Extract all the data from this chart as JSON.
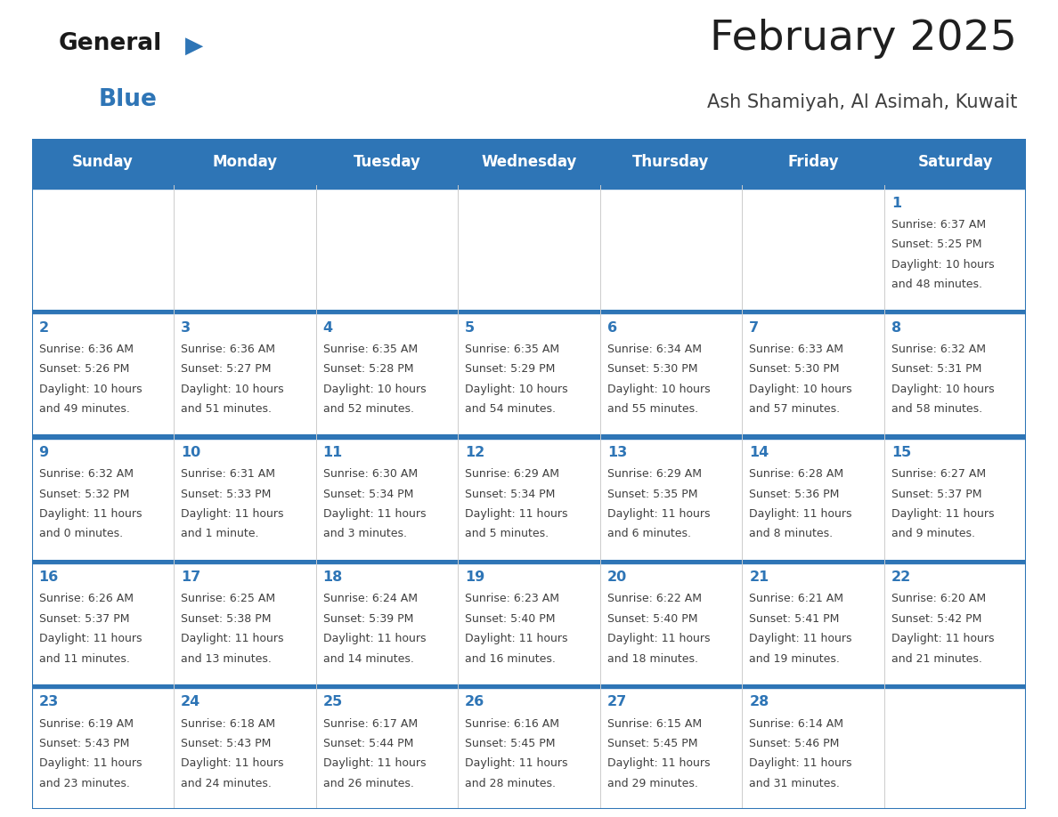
{
  "title": "February 2025",
  "subtitle": "Ash Shamiyah, Al Asimah, Kuwait",
  "header_bg_color": "#2E75B6",
  "header_text_color": "#FFFFFF",
  "border_color": "#2E75B6",
  "cell_bg_color": "#F2F2F2",
  "title_color": "#1F1F1F",
  "subtitle_color": "#404040",
  "day_num_color": "#2E75B6",
  "info_color": "#404040",
  "days_of_week": [
    "Sunday",
    "Monday",
    "Tuesday",
    "Wednesday",
    "Thursday",
    "Friday",
    "Saturday"
  ],
  "calendar_data": [
    [
      null,
      null,
      null,
      null,
      null,
      null,
      {
        "day": "1",
        "sunrise": "6:37 AM",
        "sunset": "5:25 PM",
        "daylight": "10 hours",
        "daylight2": "and 48 minutes."
      }
    ],
    [
      {
        "day": "2",
        "sunrise": "6:36 AM",
        "sunset": "5:26 PM",
        "daylight": "10 hours",
        "daylight2": "and 49 minutes."
      },
      {
        "day": "3",
        "sunrise": "6:36 AM",
        "sunset": "5:27 PM",
        "daylight": "10 hours",
        "daylight2": "and 51 minutes."
      },
      {
        "day": "4",
        "sunrise": "6:35 AM",
        "sunset": "5:28 PM",
        "daylight": "10 hours",
        "daylight2": "and 52 minutes."
      },
      {
        "day": "5",
        "sunrise": "6:35 AM",
        "sunset": "5:29 PM",
        "daylight": "10 hours",
        "daylight2": "and 54 minutes."
      },
      {
        "day": "6",
        "sunrise": "6:34 AM",
        "sunset": "5:30 PM",
        "daylight": "10 hours",
        "daylight2": "and 55 minutes."
      },
      {
        "day": "7",
        "sunrise": "6:33 AM",
        "sunset": "5:30 PM",
        "daylight": "10 hours",
        "daylight2": "and 57 minutes."
      },
      {
        "day": "8",
        "sunrise": "6:32 AM",
        "sunset": "5:31 PM",
        "daylight": "10 hours",
        "daylight2": "and 58 minutes."
      }
    ],
    [
      {
        "day": "9",
        "sunrise": "6:32 AM",
        "sunset": "5:32 PM",
        "daylight": "11 hours",
        "daylight2": "and 0 minutes."
      },
      {
        "day": "10",
        "sunrise": "6:31 AM",
        "sunset": "5:33 PM",
        "daylight": "11 hours",
        "daylight2": "and 1 minute."
      },
      {
        "day": "11",
        "sunrise": "6:30 AM",
        "sunset": "5:34 PM",
        "daylight": "11 hours",
        "daylight2": "and 3 minutes."
      },
      {
        "day": "12",
        "sunrise": "6:29 AM",
        "sunset": "5:34 PM",
        "daylight": "11 hours",
        "daylight2": "and 5 minutes."
      },
      {
        "day": "13",
        "sunrise": "6:29 AM",
        "sunset": "5:35 PM",
        "daylight": "11 hours",
        "daylight2": "and 6 minutes."
      },
      {
        "day": "14",
        "sunrise": "6:28 AM",
        "sunset": "5:36 PM",
        "daylight": "11 hours",
        "daylight2": "and 8 minutes."
      },
      {
        "day": "15",
        "sunrise": "6:27 AM",
        "sunset": "5:37 PM",
        "daylight": "11 hours",
        "daylight2": "and 9 minutes."
      }
    ],
    [
      {
        "day": "16",
        "sunrise": "6:26 AM",
        "sunset": "5:37 PM",
        "daylight": "11 hours",
        "daylight2": "and 11 minutes."
      },
      {
        "day": "17",
        "sunrise": "6:25 AM",
        "sunset": "5:38 PM",
        "daylight": "11 hours",
        "daylight2": "and 13 minutes."
      },
      {
        "day": "18",
        "sunrise": "6:24 AM",
        "sunset": "5:39 PM",
        "daylight": "11 hours",
        "daylight2": "and 14 minutes."
      },
      {
        "day": "19",
        "sunrise": "6:23 AM",
        "sunset": "5:40 PM",
        "daylight": "11 hours",
        "daylight2": "and 16 minutes."
      },
      {
        "day": "20",
        "sunrise": "6:22 AM",
        "sunset": "5:40 PM",
        "daylight": "11 hours",
        "daylight2": "and 18 minutes."
      },
      {
        "day": "21",
        "sunrise": "6:21 AM",
        "sunset": "5:41 PM",
        "daylight": "11 hours",
        "daylight2": "and 19 minutes."
      },
      {
        "day": "22",
        "sunrise": "6:20 AM",
        "sunset": "5:42 PM",
        "daylight": "11 hours",
        "daylight2": "and 21 minutes."
      }
    ],
    [
      {
        "day": "23",
        "sunrise": "6:19 AM",
        "sunset": "5:43 PM",
        "daylight": "11 hours",
        "daylight2": "and 23 minutes."
      },
      {
        "day": "24",
        "sunrise": "6:18 AM",
        "sunset": "5:43 PM",
        "daylight": "11 hours",
        "daylight2": "and 24 minutes."
      },
      {
        "day": "25",
        "sunrise": "6:17 AM",
        "sunset": "5:44 PM",
        "daylight": "11 hours",
        "daylight2": "and 26 minutes."
      },
      {
        "day": "26",
        "sunrise": "6:16 AM",
        "sunset": "5:45 PM",
        "daylight": "11 hours",
        "daylight2": "and 28 minutes."
      },
      {
        "day": "27",
        "sunrise": "6:15 AM",
        "sunset": "5:45 PM",
        "daylight": "11 hours",
        "daylight2": "and 29 minutes."
      },
      {
        "day": "28",
        "sunrise": "6:14 AM",
        "sunset": "5:46 PM",
        "daylight": "11 hours",
        "daylight2": "and 31 minutes."
      },
      null
    ]
  ],
  "logo_general_color": "#1A1A1A",
  "logo_blue_color": "#2E75B6",
  "logo_triangle_color": "#2E75B6"
}
